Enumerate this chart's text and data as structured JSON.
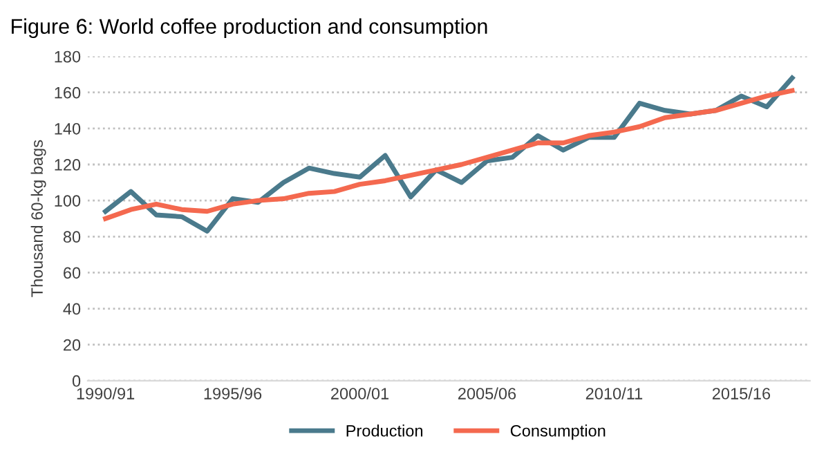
{
  "chart_data": {
    "type": "line",
    "title": "Figure 6: World coffee production and consumption",
    "ylabel": "Thousand 60-kg bags",
    "categories": [
      "1990/91",
      null,
      null,
      null,
      null,
      "1995/96",
      null,
      null,
      null,
      null,
      "2000/01",
      null,
      null,
      null,
      null,
      "2005/06",
      null,
      null,
      null,
      null,
      "2010/11",
      null,
      null,
      null,
      null,
      "2015/16",
      null,
      null
    ],
    "series": [
      {
        "name": "Production",
        "color": "#4a7a8c",
        "values": [
          94,
          105,
          92,
          91,
          83,
          101,
          99,
          110,
          118,
          115,
          113,
          125,
          102,
          117,
          110,
          122,
          124,
          136,
          128,
          135,
          135,
          154,
          150,
          148,
          150,
          158,
          152,
          168
        ]
      },
      {
        "name": "Consumption",
        "color": "#f4694f",
        "values": [
          90,
          95,
          98,
          95,
          94,
          98,
          100,
          101,
          104,
          105,
          109,
          111,
          114,
          117,
          120,
          124,
          128,
          132,
          132,
          136,
          138,
          141,
          146,
          148,
          150,
          154,
          158,
          161
        ]
      }
    ],
    "ylim": [
      0,
      180
    ],
    "yticks": [
      0,
      20,
      40,
      60,
      80,
      100,
      120,
      140,
      160,
      180
    ],
    "grid": "y",
    "legend": "bottom",
    "marker": "none",
    "line_style": "solid"
  }
}
